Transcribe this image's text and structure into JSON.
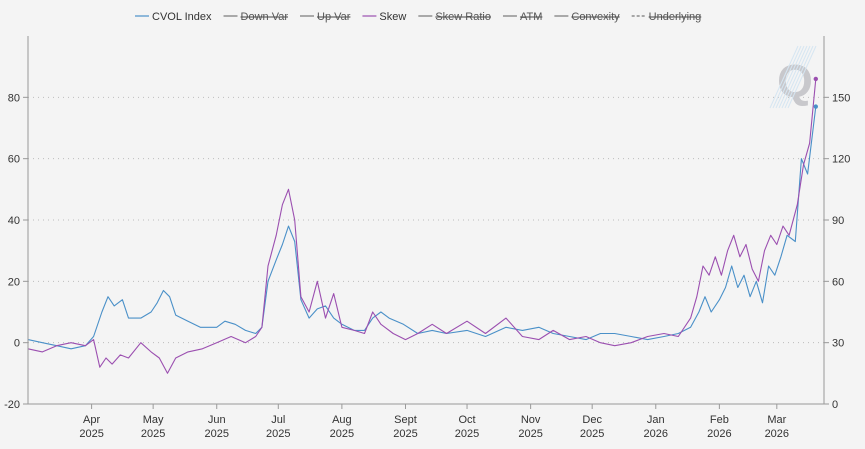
{
  "chart_data": {
    "type": "line",
    "legend": {
      "placement": "top",
      "items": [
        {
          "label": "CVOL Index",
          "color": "#4a90c8",
          "enabled": true,
          "dashed": false
        },
        {
          "label": "Down Var",
          "color": "#666666",
          "enabled": false,
          "dashed": false
        },
        {
          "label": "Up Var",
          "color": "#666666",
          "enabled": false,
          "dashed": false
        },
        {
          "label": "Skew",
          "color": "#9b4fb0",
          "enabled": true,
          "dashed": false
        },
        {
          "label": "Skew Ratio",
          "color": "#666666",
          "enabled": false,
          "dashed": false
        },
        {
          "label": "ATM",
          "color": "#666666",
          "enabled": false,
          "dashed": false
        },
        {
          "label": "Convexity",
          "color": "#666666",
          "enabled": false,
          "dashed": false
        },
        {
          "label": "Underlying",
          "color": "#666666",
          "enabled": false,
          "dashed": true
        }
      ]
    },
    "left_axis": {
      "range": [
        -20,
        100
      ],
      "ticks": [
        "-20",
        "0",
        "20",
        "40",
        "60",
        "80"
      ]
    },
    "right_axis": {
      "range": [
        0,
        180
      ],
      "ticks": [
        "0",
        "30",
        "60",
        "90",
        "120",
        "150"
      ]
    },
    "x_axis": {
      "range": [
        "2025-03-01",
        "2026-03-24"
      ],
      "ticks": [
        {
          "date": "2025-04-01",
          "month": "Apr",
          "year": "2025"
        },
        {
          "date": "2025-05-01",
          "month": "May",
          "year": "2025"
        },
        {
          "date": "2025-06-01",
          "month": "Jun",
          "year": "2025"
        },
        {
          "date": "2025-07-01",
          "month": "Jul",
          "year": "2025"
        },
        {
          "date": "2025-08-01",
          "month": "Aug",
          "year": "2025"
        },
        {
          "date": "2025-09-01",
          "month": "Sept",
          "year": "2025"
        },
        {
          "date": "2025-10-01",
          "month": "Oct",
          "year": "2025"
        },
        {
          "date": "2025-11-01",
          "month": "Nov",
          "year": "2025"
        },
        {
          "date": "2025-12-01",
          "month": "Dec",
          "year": "2025"
        },
        {
          "date": "2026-01-01",
          "month": "Jan",
          "year": "2026"
        },
        {
          "date": "2026-02-01",
          "month": "Feb",
          "year": "2026"
        },
        {
          "date": "2026-03-01",
          "month": "Mar",
          "year": "2026"
        }
      ]
    },
    "grid": "horizontal-dotted",
    "watermark": "Q",
    "series": [
      {
        "name": "CVOL Index",
        "color": "#4a90c8",
        "axis": "left",
        "points": [
          [
            "2025-03-01",
            1
          ],
          [
            "2025-03-08",
            0
          ],
          [
            "2025-03-15",
            -1
          ],
          [
            "2025-03-22",
            -2
          ],
          [
            "2025-03-29",
            -1
          ],
          [
            "2025-04-02",
            2
          ],
          [
            "2025-04-06",
            10
          ],
          [
            "2025-04-09",
            15
          ],
          [
            "2025-04-12",
            12
          ],
          [
            "2025-04-16",
            14
          ],
          [
            "2025-04-19",
            8
          ],
          [
            "2025-04-25",
            8
          ],
          [
            "2025-04-30",
            10
          ],
          [
            "2025-05-03",
            13
          ],
          [
            "2025-05-06",
            17
          ],
          [
            "2025-05-09",
            15
          ],
          [
            "2025-05-12",
            9
          ],
          [
            "2025-05-18",
            7
          ],
          [
            "2025-05-24",
            5
          ],
          [
            "2025-06-01",
            5
          ],
          [
            "2025-06-05",
            7
          ],
          [
            "2025-06-10",
            6
          ],
          [
            "2025-06-15",
            4
          ],
          [
            "2025-06-20",
            3
          ],
          [
            "2025-06-23",
            5
          ],
          [
            "2025-06-26",
            20
          ],
          [
            "2025-06-30",
            27
          ],
          [
            "2025-07-03",
            32
          ],
          [
            "2025-07-06",
            38
          ],
          [
            "2025-07-09",
            33
          ],
          [
            "2025-07-12",
            14
          ],
          [
            "2025-07-16",
            8
          ],
          [
            "2025-07-20",
            11
          ],
          [
            "2025-07-24",
            12
          ],
          [
            "2025-07-28",
            8
          ],
          [
            "2025-08-01",
            6
          ],
          [
            "2025-08-07",
            4
          ],
          [
            "2025-08-12",
            4
          ],
          [
            "2025-08-16",
            8
          ],
          [
            "2025-08-20",
            10
          ],
          [
            "2025-08-24",
            8
          ],
          [
            "2025-08-31",
            6
          ],
          [
            "2025-09-07",
            3
          ],
          [
            "2025-09-14",
            4
          ],
          [
            "2025-09-21",
            3
          ],
          [
            "2025-10-01",
            4
          ],
          [
            "2025-10-10",
            2
          ],
          [
            "2025-10-20",
            5
          ],
          [
            "2025-10-28",
            4
          ],
          [
            "2025-11-05",
            5
          ],
          [
            "2025-11-12",
            3
          ],
          [
            "2025-11-20",
            2
          ],
          [
            "2025-11-28",
            1
          ],
          [
            "2025-12-05",
            3
          ],
          [
            "2025-12-12",
            3
          ],
          [
            "2025-12-20",
            2
          ],
          [
            "2025-12-28",
            1
          ],
          [
            "2026-01-05",
            2
          ],
          [
            "2026-01-12",
            3
          ],
          [
            "2026-01-18",
            5
          ],
          [
            "2026-01-22",
            10
          ],
          [
            "2026-01-25",
            15
          ],
          [
            "2026-01-28",
            10
          ],
          [
            "2026-02-01",
            14
          ],
          [
            "2026-02-04",
            18
          ],
          [
            "2026-02-07",
            25
          ],
          [
            "2026-02-10",
            18
          ],
          [
            "2026-02-13",
            22
          ],
          [
            "2026-02-16",
            15
          ],
          [
            "2026-02-19",
            20
          ],
          [
            "2026-02-22",
            13
          ],
          [
            "2026-02-25",
            25
          ],
          [
            "2026-02-28",
            22
          ],
          [
            "2026-03-03",
            28
          ],
          [
            "2026-03-06",
            35
          ],
          [
            "2026-03-10",
            33
          ],
          [
            "2026-03-13",
            60
          ],
          [
            "2026-03-16",
            55
          ],
          [
            "2026-03-20",
            77
          ]
        ]
      },
      {
        "name": "Skew",
        "color": "#9b4fb0",
        "axis": "left",
        "points": [
          [
            "2025-03-01",
            -2
          ],
          [
            "2025-03-08",
            -3
          ],
          [
            "2025-03-15",
            -1
          ],
          [
            "2025-03-22",
            0
          ],
          [
            "2025-03-29",
            -1
          ],
          [
            "2025-04-02",
            1
          ],
          [
            "2025-04-05",
            -8
          ],
          [
            "2025-04-08",
            -5
          ],
          [
            "2025-04-11",
            -7
          ],
          [
            "2025-04-15",
            -4
          ],
          [
            "2025-04-19",
            -5
          ],
          [
            "2025-04-25",
            0
          ],
          [
            "2025-04-30",
            -3
          ],
          [
            "2025-05-04",
            -5
          ],
          [
            "2025-05-08",
            -10
          ],
          [
            "2025-05-12",
            -5
          ],
          [
            "2025-05-18",
            -3
          ],
          [
            "2025-05-25",
            -2
          ],
          [
            "2025-06-01",
            0
          ],
          [
            "2025-06-08",
            2
          ],
          [
            "2025-06-15",
            0
          ],
          [
            "2025-06-20",
            2
          ],
          [
            "2025-06-23",
            5
          ],
          [
            "2025-06-26",
            25
          ],
          [
            "2025-06-30",
            35
          ],
          [
            "2025-07-03",
            45
          ],
          [
            "2025-07-06",
            50
          ],
          [
            "2025-07-09",
            40
          ],
          [
            "2025-07-12",
            15
          ],
          [
            "2025-07-16",
            10
          ],
          [
            "2025-07-20",
            20
          ],
          [
            "2025-07-24",
            8
          ],
          [
            "2025-07-28",
            16
          ],
          [
            "2025-08-01",
            5
          ],
          [
            "2025-08-07",
            4
          ],
          [
            "2025-08-12",
            3
          ],
          [
            "2025-08-16",
            10
          ],
          [
            "2025-08-20",
            6
          ],
          [
            "2025-08-26",
            3
          ],
          [
            "2025-09-01",
            1
          ],
          [
            "2025-09-07",
            3
          ],
          [
            "2025-09-14",
            6
          ],
          [
            "2025-09-21",
            3
          ],
          [
            "2025-10-01",
            7
          ],
          [
            "2025-10-10",
            3
          ],
          [
            "2025-10-20",
            8
          ],
          [
            "2025-10-28",
            2
          ],
          [
            "2025-11-05",
            1
          ],
          [
            "2025-11-12",
            4
          ],
          [
            "2025-11-20",
            1
          ],
          [
            "2025-11-28",
            2
          ],
          [
            "2025-12-05",
            0
          ],
          [
            "2025-12-12",
            -1
          ],
          [
            "2025-12-20",
            0
          ],
          [
            "2025-12-28",
            2
          ],
          [
            "2026-01-05",
            3
          ],
          [
            "2026-01-12",
            2
          ],
          [
            "2026-01-18",
            8
          ],
          [
            "2026-01-21",
            15
          ],
          [
            "2026-01-24",
            25
          ],
          [
            "2026-01-27",
            22
          ],
          [
            "2026-01-30",
            28
          ],
          [
            "2026-02-02",
            22
          ],
          [
            "2026-02-05",
            30
          ],
          [
            "2026-02-08",
            35
          ],
          [
            "2026-02-11",
            28
          ],
          [
            "2026-02-14",
            32
          ],
          [
            "2026-02-17",
            24
          ],
          [
            "2026-02-20",
            20
          ],
          [
            "2026-02-23",
            30
          ],
          [
            "2026-02-26",
            35
          ],
          [
            "2026-03-01",
            32
          ],
          [
            "2026-03-04",
            38
          ],
          [
            "2026-03-07",
            35
          ],
          [
            "2026-03-11",
            45
          ],
          [
            "2026-03-14",
            58
          ],
          [
            "2026-03-17",
            65
          ],
          [
            "2026-03-20",
            86
          ]
        ]
      }
    ]
  }
}
